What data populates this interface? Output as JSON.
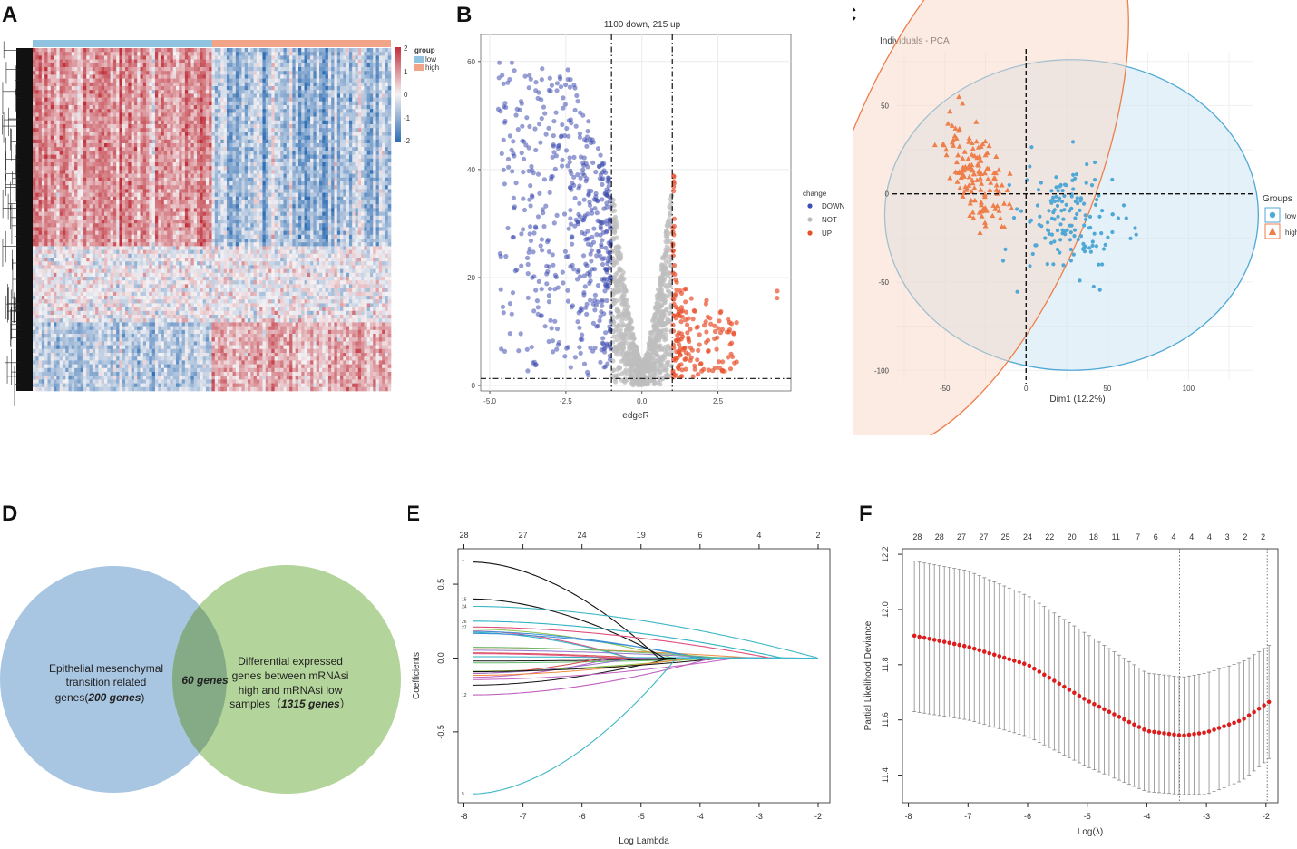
{
  "panels": {
    "A": {
      "label": "A",
      "legend": {
        "title": "group",
        "low": "low",
        "high": "high",
        "colorbar_ticks": [
          "2",
          "1",
          "0",
          "-1",
          "-2"
        ]
      },
      "colors": {
        "low": "#8fc3e0",
        "high": "#f2a488",
        "red": "#c0303a",
        "blue": "#2f6eb3",
        "mid": "#f4f2f4"
      }
    },
    "B": {
      "label": "B"
    },
    "C": {
      "label": "C"
    },
    "D": {
      "label": "D",
      "left_line1": "Epithelial mesenchymal",
      "left_line2": "transition related",
      "left_line3_prefix": "genes(",
      "left_count": "200 genes",
      "left_line3_suffix": ")",
      "center": "60 genes",
      "right_line1": "Differential expressed",
      "right_line2": "genes between mRNAsi",
      "right_line3": "high and mRNAsi low",
      "right_line4_prefix": "samples（",
      "right_count": "1315 genes",
      "right_line4_suffix": "）",
      "colors": {
        "left": "#a8c6e2",
        "right": "#b3d49a",
        "overlap": "#84ab86"
      }
    },
    "E": {
      "label": "E"
    },
    "F": {
      "label": "F"
    }
  },
  "chart_data": [
    {
      "panel": "A",
      "type": "heatmap",
      "title": "",
      "groups": [
        "low",
        "high"
      ],
      "group_split_fraction": 0.5,
      "colorbar_range": [
        -2,
        2
      ]
    },
    {
      "panel": "B",
      "type": "scatter",
      "title": "1100 down, 215 up",
      "xlabel": "edgeR",
      "ylabel": "",
      "xlim": [
        -5.3,
        4.9
      ],
      "ylim": [
        -1,
        65
      ],
      "xticks": [
        -5.0,
        -2.5,
        0.0,
        2.5
      ],
      "xtick_labels": [
        "-5.0",
        "-2.5",
        "0.0",
        "2.5"
      ],
      "yticks": [
        0,
        20,
        40,
        60
      ],
      "ytick_labels": [
        "0",
        "20",
        "40",
        "60"
      ],
      "vlines": [
        -1,
        1
      ],
      "hline": 1.3,
      "legend": {
        "title": "change",
        "entries": [
          "DOWN",
          "NOT",
          "UP"
        ]
      },
      "series": [
        {
          "name": "DOWN",
          "color": "#3f4fb0",
          "count": 1100,
          "x_range": [
            -5.0,
            -1.0
          ],
          "y_max": 63
        },
        {
          "name": "NOT",
          "color": "#bdbdbd",
          "x_range": [
            -1.0,
            1.0
          ],
          "y_max": 37
        },
        {
          "name": "UP",
          "color": "#e8502c",
          "count": 215,
          "x_range": [
            1.0,
            4.5
          ],
          "y_max": 45
        }
      ],
      "highlighted_points": [
        {
          "x": 4.45,
          "y": 17.5
        },
        {
          "x": 4.45,
          "y": 16.2
        }
      ]
    },
    {
      "panel": "C",
      "type": "scatter",
      "title": "Individuals - PCA",
      "xlabel": "Dim1 (12.2%)",
      "ylabel": "",
      "xlim": [
        -80,
        140
      ],
      "ylim": [
        -105,
        80
      ],
      "xticks": [
        -50,
        0,
        50,
        100
      ],
      "xtick_labels": [
        "-50",
        "0",
        "50",
        "100"
      ],
      "yticks": [
        -100,
        -50,
        0,
        50
      ],
      "ytick_labels": [
        "-100",
        "-50",
        "0",
        "50"
      ],
      "legend": {
        "title": "Groups",
        "entries": [
          "low",
          "high"
        ]
      },
      "series": [
        {
          "name": "low",
          "marker": "circle",
          "color": "#4fa8d6",
          "ellipse_center": [
            28,
            -12
          ],
          "ellipse_radii": [
            115,
            88
          ]
        },
        {
          "name": "high",
          "marker": "triangle",
          "color": "#ee7e4a",
          "ellipse_center": [
            -35,
            10
          ],
          "ellipse_radii": [
            85,
            48
          ],
          "ellipse_angle_deg": -68
        }
      ]
    },
    {
      "panel": "E",
      "type": "line",
      "title": "",
      "xlabel": "Log Lambda",
      "ylabel": "Coefficients",
      "xlim": [
        -8.1,
        -1.8
      ],
      "ylim": [
        -0.98,
        0.74
      ],
      "xticks": [
        -8,
        -7,
        -6,
        -5,
        -4,
        -3,
        -2
      ],
      "xtick_labels": [
        "-8",
        "-7",
        "-6",
        "-5",
        "-4",
        "-3",
        "-2"
      ],
      "yticks": [
        -0.5,
        0.0,
        0.5
      ],
      "ytick_labels": [
        "-0.5",
        "0.0",
        "0.5"
      ],
      "top_axis": {
        "positions": [
          -8,
          -7,
          -6,
          -5,
          -4,
          -3,
          -2
        ],
        "labels": [
          "28",
          "27",
          "24",
          "19",
          "6",
          "4",
          "2"
        ]
      },
      "left_curve_labels": [
        "7",
        "15",
        "24",
        "26",
        "27",
        "12",
        "5"
      ],
      "series": [
        {
          "name": "7",
          "start": 0.65,
          "zero_at": -4.7,
          "color": "#111111"
        },
        {
          "name": "15",
          "start": 0.4,
          "zero_at": -4.6,
          "color": "#111111"
        },
        {
          "name": "24",
          "start": 0.35,
          "zero_at": -2.0,
          "color": "#3fb7c6"
        },
        {
          "name": "26",
          "start": 0.25,
          "zero_at": -2.6,
          "color": "#2fb3c4"
        },
        {
          "name": "27",
          "start": 0.21,
          "zero_at": -2.8,
          "color": "#e0507e"
        },
        {
          "name": "12",
          "start": -0.25,
          "zero_at": -3.8,
          "color": "#c060c0"
        },
        {
          "name": "5",
          "start": -0.92,
          "zero_at": -4.4,
          "color": "#3fb7c6"
        }
      ]
    },
    {
      "panel": "F",
      "type": "line",
      "title": "",
      "xlabel": "Log(λ)",
      "ylabel": "Partial Likelihood Deviance",
      "xlim": [
        -8.1,
        -1.8
      ],
      "ylim": [
        11.3,
        12.22
      ],
      "xticks": [
        -8,
        -7,
        -6,
        -5,
        -4,
        -3,
        -2
      ],
      "xtick_labels": [
        "-8",
        "-7",
        "-6",
        "-5",
        "-4",
        "-3",
        "-2"
      ],
      "yticks": [
        11.4,
        11.6,
        11.8,
        12.0,
        12.2
      ],
      "ytick_labels": [
        "11.4",
        "11.6",
        "11.8",
        "12.0",
        "12.2"
      ],
      "top_axis": {
        "positions": [
          -7.85,
          -7.48,
          -7.11,
          -6.74,
          -6.37,
          -6.0,
          -5.63,
          -5.26,
          -4.89,
          -4.52,
          -4.15,
          -3.85,
          -3.55,
          -3.25,
          -2.95,
          -2.65,
          -2.35,
          -2.05
        ],
        "labels": [
          "28",
          "28",
          "27",
          "27",
          "25",
          "24",
          "22",
          "20",
          "18",
          "11",
          "7",
          "6",
          "4",
          "4",
          "4",
          "3",
          "2",
          "2"
        ]
      },
      "vlines": [
        -3.45,
        -1.98
      ],
      "series": [
        {
          "name": "cv_mean",
          "color": "#dd1c1c",
          "x_range": [
            -7.9,
            -1.95
          ],
          "anchors_x": [
            -7.9,
            -7,
            -6,
            -5,
            -4,
            -3.4,
            -3,
            -2.4,
            -1.95
          ],
          "anchors_y": [
            11.905,
            11.865,
            11.8,
            11.67,
            11.56,
            11.543,
            11.555,
            11.6,
            11.665
          ]
        },
        {
          "name": "upper",
          "color": "#8a8a8a",
          "anchors_x": [
            -7.9,
            -7,
            -6,
            -5,
            -4,
            -3.4,
            -3,
            -2.4,
            -1.95
          ],
          "anchors_y": [
            12.175,
            12.14,
            12.05,
            11.91,
            11.77,
            11.755,
            11.77,
            11.81,
            11.87
          ]
        },
        {
          "name": "lower",
          "color": "#8a8a8a",
          "anchors_x": [
            -7.9,
            -7,
            -6,
            -5,
            -4,
            -3.4,
            -3,
            -2.4,
            -1.95
          ],
          "anchors_y": [
            11.63,
            11.6,
            11.54,
            11.43,
            11.34,
            11.33,
            11.33,
            11.38,
            11.46
          ]
        }
      ]
    }
  ]
}
